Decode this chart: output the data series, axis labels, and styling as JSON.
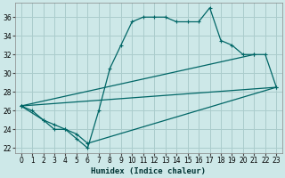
{
  "xlabel": "Humidex (Indice chaleur)",
  "background_color": "#cde8e8",
  "grid_color": "#aacccc",
  "line_color": "#006666",
  "xlim": [
    -0.5,
    23.5
  ],
  "ylim": [
    21.5,
    37.5
  ],
  "xticks": [
    0,
    1,
    2,
    3,
    4,
    5,
    6,
    7,
    8,
    9,
    10,
    11,
    12,
    13,
    14,
    15,
    16,
    17,
    18,
    19,
    20,
    21,
    22,
    23
  ],
  "yticks": [
    22,
    24,
    26,
    28,
    30,
    32,
    34,
    36
  ],
  "line1_x": [
    0,
    1,
    2,
    3,
    4,
    5,
    6,
    7,
    8,
    9,
    10,
    11,
    12,
    13,
    14,
    15,
    16,
    17,
    18,
    19,
    20,
    21
  ],
  "line1_y": [
    26.5,
    26.0,
    25.0,
    24.0,
    24.0,
    23.0,
    22.0,
    26.0,
    30.5,
    33.0,
    35.5,
    36.0,
    36.0,
    36.0,
    35.5,
    35.5,
    35.5,
    37.0,
    33.5,
    33.0,
    32.0,
    32.0
  ],
  "line2_x": [
    0,
    2,
    3,
    4,
    5,
    6,
    23
  ],
  "line2_y": [
    26.5,
    25.0,
    24.5,
    24.0,
    23.5,
    22.5,
    28.5
  ],
  "line3_x": [
    0,
    21,
    22,
    23
  ],
  "line3_y": [
    26.5,
    32.0,
    32.0,
    28.5
  ],
  "line4_x": [
    0,
    23
  ],
  "line4_y": [
    26.5,
    28.5
  ]
}
